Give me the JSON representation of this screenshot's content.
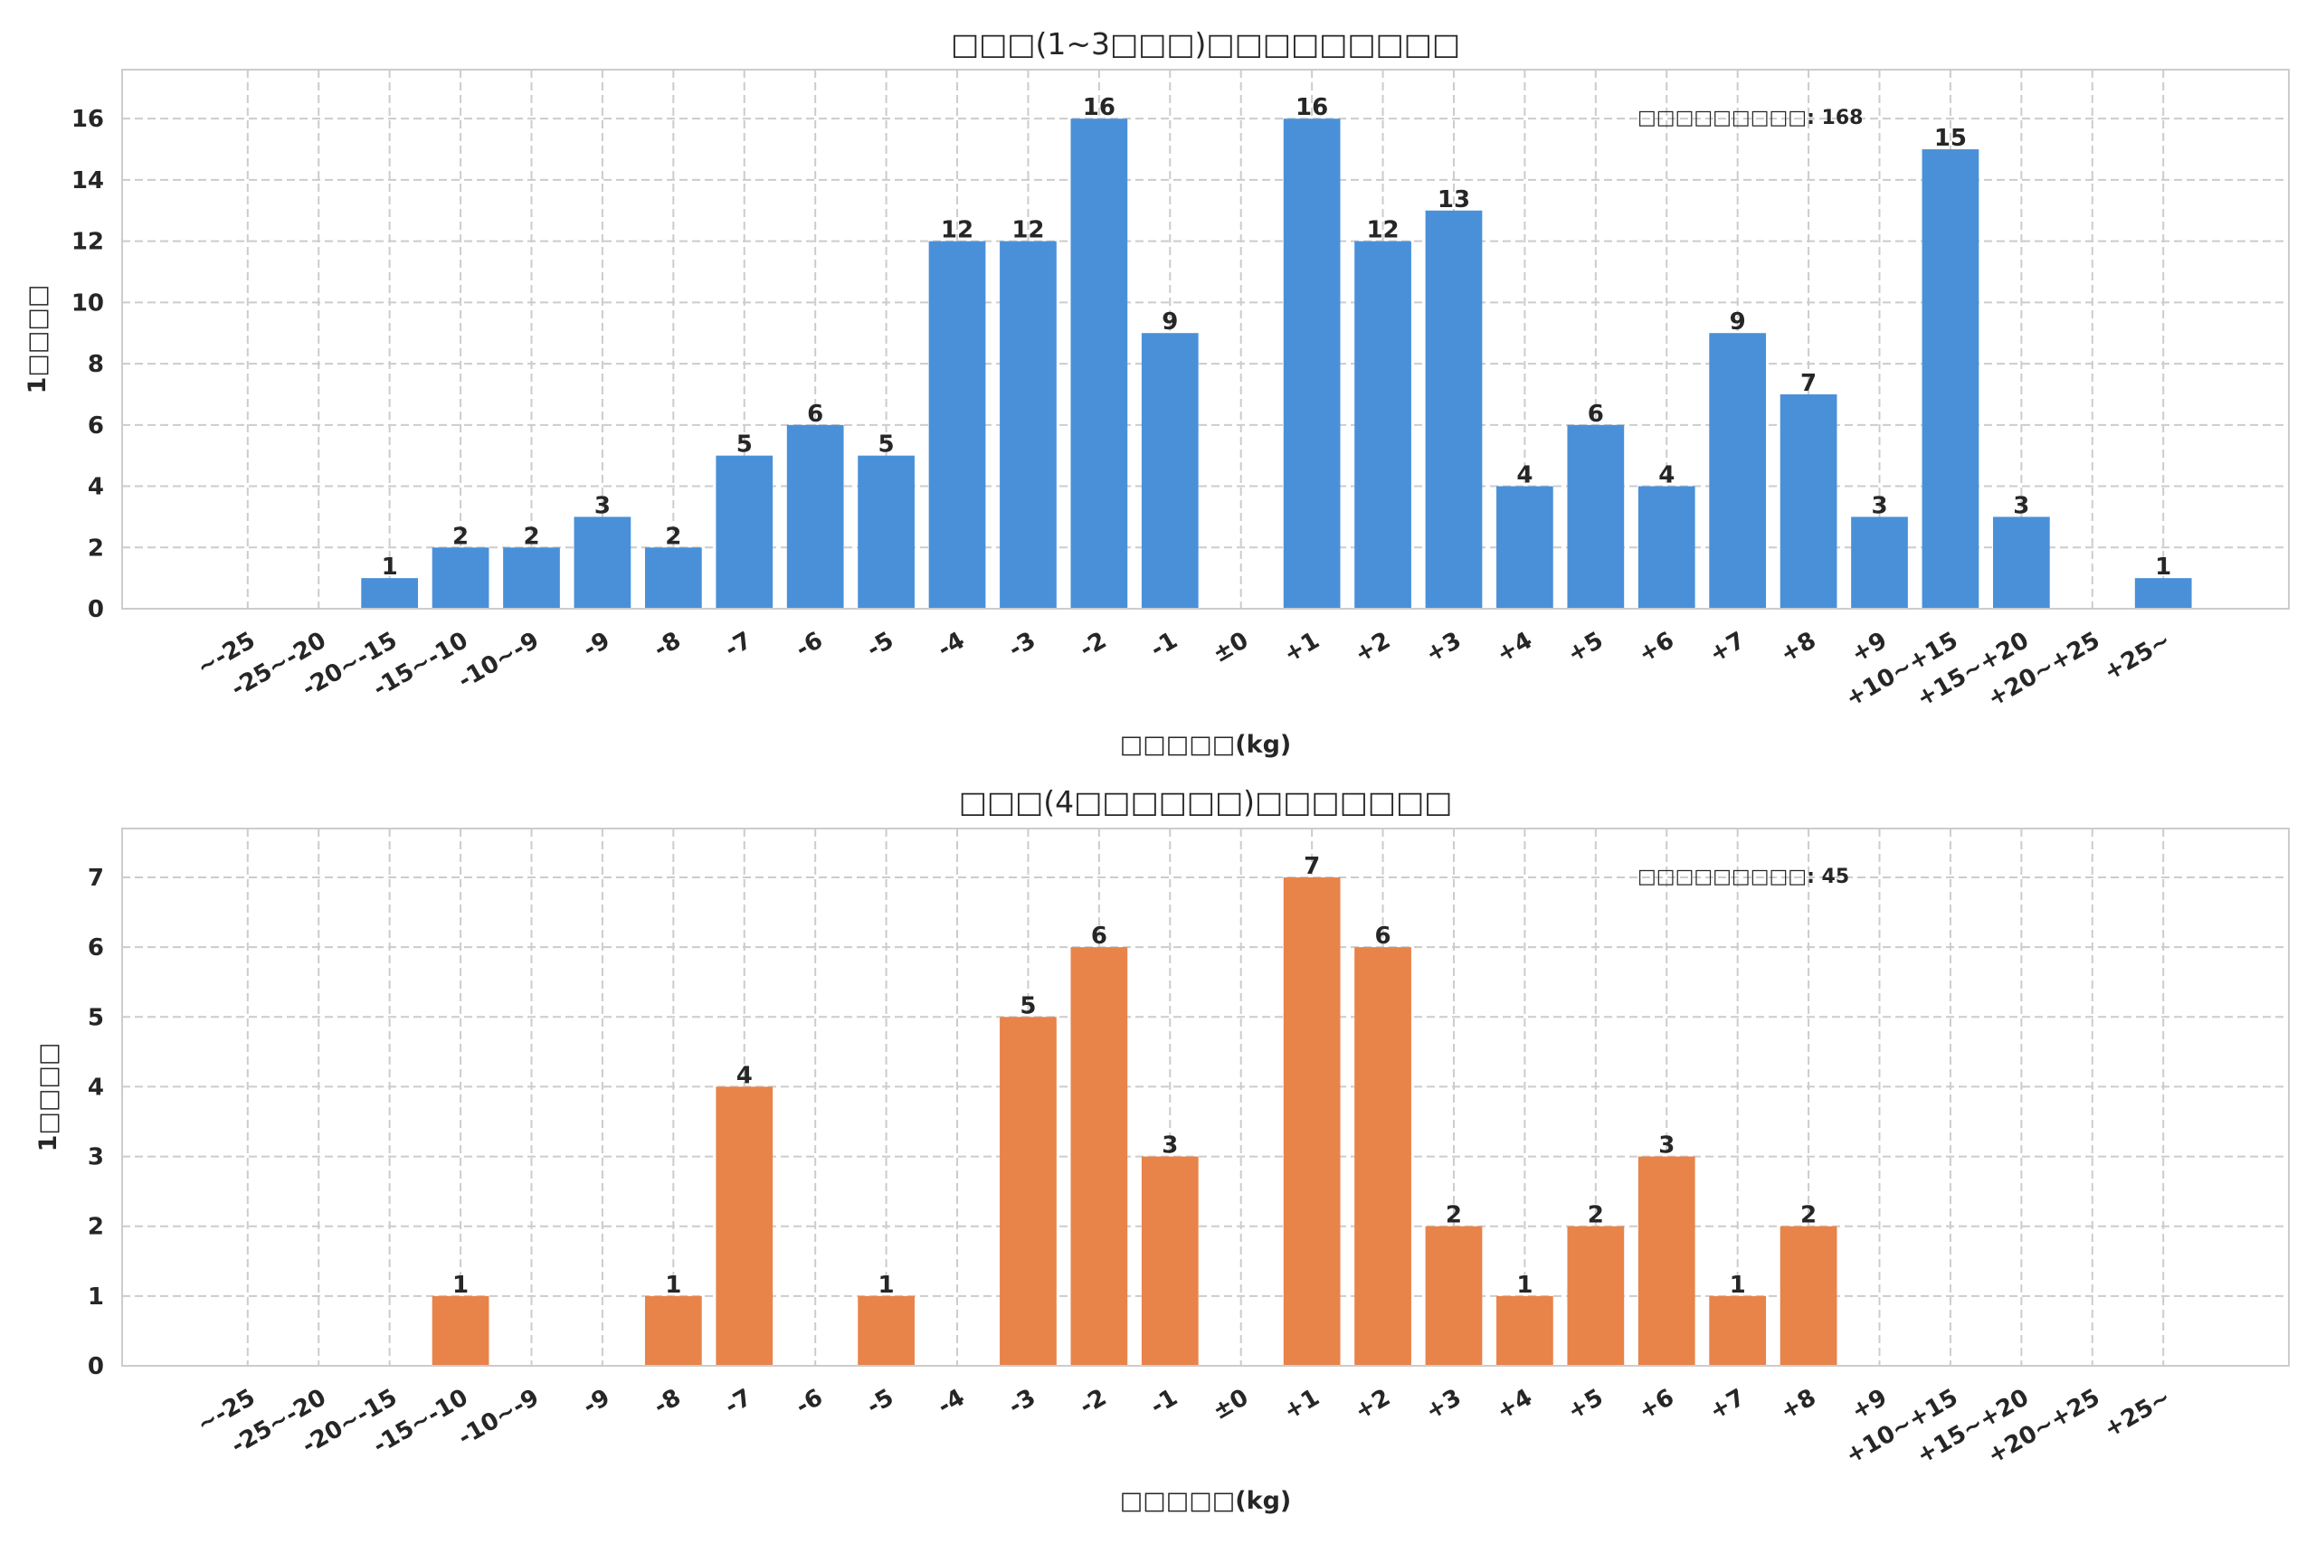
{
  "chart_data": [
    {
      "type": "bar",
      "title": "□□□(1~3□□□)□□□□□□□□□",
      "xlabel": "□□□□□(kg)",
      "ylabel": "1□□□□",
      "annotation": "□□□□□□□□□: 168",
      "color": "#4a90d9",
      "ylim": [
        0,
        17.6
      ],
      "yticks": [
        0,
        2,
        4,
        6,
        8,
        10,
        12,
        14,
        16
      ],
      "grid": true,
      "categories": [
        "~-25",
        "-25~-20",
        "-20~-15",
        "-15~-10",
        "-10~-9",
        "-9",
        "-8",
        "-7",
        "-6",
        "-5",
        "-4",
        "-3",
        "-2",
        "-1",
        "±0",
        "+1",
        "+2",
        "+3",
        "+4",
        "+5",
        "+6",
        "+7",
        "+8",
        "+9",
        "+10~+15",
        "+15~+20",
        "+20~+25",
        "+25~"
      ],
      "values": [
        0,
        0,
        1,
        2,
        2,
        3,
        2,
        5,
        6,
        5,
        12,
        12,
        16,
        9,
        0,
        16,
        12,
        13,
        4,
        6,
        4,
        9,
        7,
        3,
        15,
        3,
        0,
        1
      ]
    },
    {
      "type": "bar",
      "title": "□□□(4□□□□□□)□□□□□□□",
      "xlabel": "□□□□□(kg)",
      "ylabel": "1□□□□",
      "annotation": "□□□□□□□□□: 45",
      "color": "#e8834a",
      "ylim": [
        0,
        7.7
      ],
      "yticks": [
        0,
        1,
        2,
        3,
        4,
        5,
        6,
        7
      ],
      "grid": true,
      "categories": [
        "~-25",
        "-25~-20",
        "-20~-15",
        "-15~-10",
        "-10~-9",
        "-9",
        "-8",
        "-7",
        "-6",
        "-5",
        "-4",
        "-3",
        "-2",
        "-1",
        "±0",
        "+1",
        "+2",
        "+3",
        "+4",
        "+5",
        "+6",
        "+7",
        "+8",
        "+9",
        "+10~+15",
        "+15~+20",
        "+20~+25",
        "+25~"
      ],
      "values": [
        0,
        0,
        0,
        1,
        0,
        0,
        1,
        4,
        0,
        1,
        0,
        5,
        6,
        3,
        0,
        7,
        6,
        2,
        1,
        2,
        3,
        1,
        2,
        0,
        0,
        0,
        0,
        0
      ]
    }
  ]
}
